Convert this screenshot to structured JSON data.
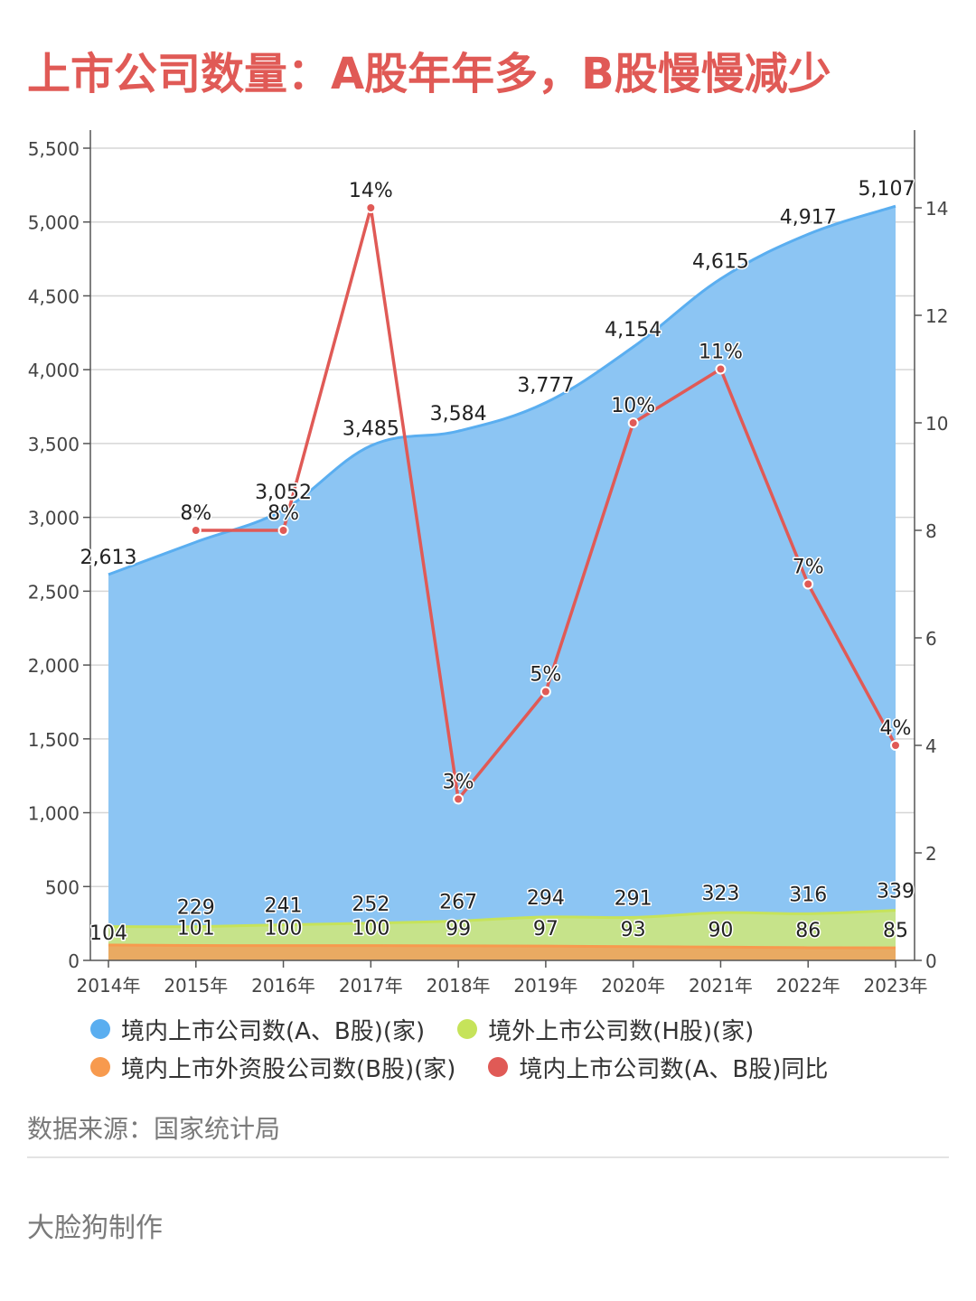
{
  "title": "上市公司数量：A股年年多，B股慢慢减少",
  "source": "数据来源：国家统计局",
  "author": "大脸狗制作",
  "legend": [
    {
      "label": "境内上市公司数(A、B股)(家)",
      "color": "#5aaef0"
    },
    {
      "label": "境外上市公司数(H股)(家)",
      "color": "#c6e35a"
    },
    {
      "label": "境内上市外资股公司数(B股)(家)",
      "color": "#f79a4e"
    },
    {
      "label": "境内上市公司数(A、B股)同比",
      "color": "#e05a56"
    }
  ],
  "chart_data": {
    "type": "area",
    "categories": [
      "2014年",
      "2015年",
      "2016年",
      "2017年",
      "2018年",
      "2019年",
      "2020年",
      "2021年",
      "2022年",
      "2023年"
    ],
    "y_left": {
      "min": 0,
      "max": 5500,
      "step": 500,
      "ticks": [
        "0",
        "500",
        "1,000",
        "1,500",
        "2,000",
        "2,500",
        "3,000",
        "3,500",
        "4,000",
        "4,500",
        "5,000",
        "5,500"
      ]
    },
    "y_right": {
      "min": 0,
      "max": 14,
      "step": 2,
      "ticks": [
        "0",
        "2",
        "4",
        "6",
        "8",
        "10",
        "12",
        "14"
      ]
    },
    "grid": true,
    "legend_position": "bottom",
    "series": [
      {
        "name": "境内上市公司数(A、B股)(家)",
        "type": "area",
        "axis": "left",
        "color": "#5aaef0",
        "fill": "#8cc5f3",
        "values": [
          2613,
          null,
          3052,
          3485,
          3584,
          3777,
          4154,
          4615,
          4917,
          5107
        ],
        "labels": [
          "2,613",
          "",
          "3,052",
          "3,485",
          "3,584",
          "3,777",
          "4,154",
          "4,615",
          "4,917",
          "5,107"
        ]
      },
      {
        "name": "境外上市公司数(H股)(家)",
        "type": "area",
        "axis": "left",
        "color": "#c6e35a",
        "fill": "#c6e38a",
        "values": [
          null,
          229,
          241,
          252,
          267,
          294,
          291,
          323,
          316,
          339
        ],
        "labels": [
          "",
          "229",
          "241",
          "252",
          "267",
          "294",
          "291",
          "323",
          "316",
          "339"
        ]
      },
      {
        "name": "境内上市外资股公司数(B股)(家)",
        "type": "area",
        "axis": "left",
        "color": "#f79a4e",
        "fill": "#e9aa62",
        "values": [
          104,
          101,
          100,
          100,
          99,
          97,
          93,
          90,
          86,
          85
        ],
        "labels": [
          "104",
          "101",
          "100",
          "100",
          "99",
          "97",
          "93",
          "90",
          "86",
          "85"
        ]
      },
      {
        "name": "境内上市公司数(A、B股)同比",
        "type": "line",
        "axis": "right",
        "color": "#e05a56",
        "values": [
          null,
          8,
          8,
          14,
          3,
          5,
          10,
          11,
          7,
          4
        ],
        "labels": [
          "",
          "8%",
          "8%",
          "14%",
          "3%",
          "5%",
          "10%",
          "11%",
          "7%",
          "4%"
        ]
      }
    ]
  }
}
